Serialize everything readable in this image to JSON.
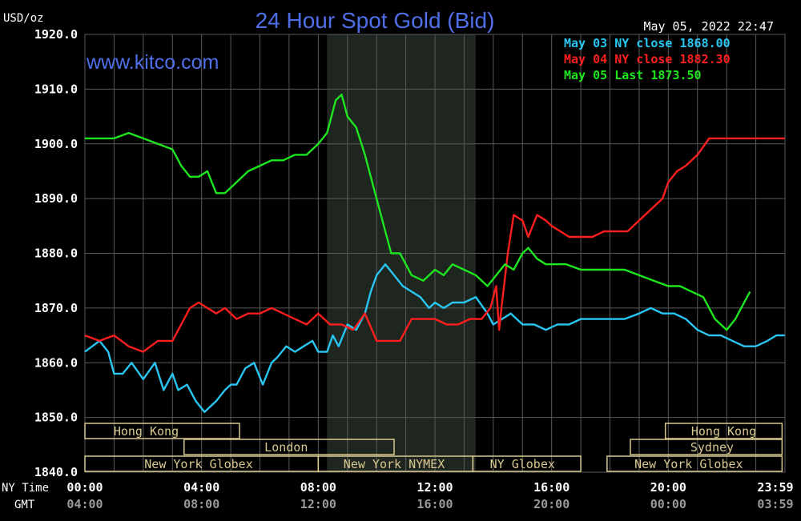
{
  "title": "24 Hour Spot Gold (Bid)",
  "units_label": "USD/oz",
  "watermark": "www.kitco.com",
  "timestamp": "May 05, 2022 22:47",
  "row_labels": {
    "ny": "NY Time",
    "gmt": "GMT"
  },
  "colors": {
    "background": "#000000",
    "title": "#4f6fe8",
    "grid": "#5a5a5a",
    "text": "#ffffff",
    "gmt_text": "#9a9a9a",
    "shade": "#1f2620",
    "session_box": "#d8c890",
    "may03": "#29c6f2",
    "may04": "#ff1e1e",
    "may05": "#1ee61e"
  },
  "chart_data": {
    "type": "line",
    "title": "24 Hour Spot Gold (Bid)",
    "ylabel": "USD/oz",
    "ylim": [
      1840,
      1920
    ],
    "xlim": [
      0,
      24
    ],
    "grid": true,
    "legend_position": "top-right",
    "y_ticks": [
      "1840.0",
      "1850.0",
      "1860.0",
      "1870.0",
      "1880.0",
      "1890.0",
      "1900.0",
      "1910.0",
      "1920.0"
    ],
    "x_ticks_ny": [
      "00:00",
      "04:00",
      "08:00",
      "12:00",
      "16:00",
      "20:00",
      "23:59"
    ],
    "x_ticks_gmt": [
      "04:00",
      "08:00",
      "12:00",
      "16:00",
      "20:00",
      "00:00",
      "03:59"
    ],
    "shaded_hours": [
      8.3,
      13.4
    ],
    "legend": [
      {
        "text": "May 03 NY close 1868.00",
        "color": "#29c6f2"
      },
      {
        "text": "May 04 NY close 1882.30",
        "color": "#ff1e1e"
      },
      {
        "text": "May 05 Last 1873.50",
        "color": "#1ee61e"
      }
    ],
    "sessions": [
      {
        "name": "Hong Kong",
        "start": 0,
        "end": 5.3,
        "row": 0,
        "label_at": 2.1
      },
      {
        "name": "Hong Kong",
        "start": 19.9,
        "end": 23.9,
        "row": 0,
        "label_at": 21.9
      },
      {
        "name": "London",
        "start": 3.4,
        "end": 10.6,
        "row": 1,
        "label_at": 6.9
      },
      {
        "name": "Sydney",
        "start": 18.7,
        "end": 23.9,
        "row": 1,
        "label_at": 21.5
      },
      {
        "name": "New York Globex",
        "start": 0,
        "end": 8.0,
        "row": 2,
        "label_at": 3.9
      },
      {
        "name": "New York NYMEX",
        "start": 8.0,
        "end": 13.3,
        "row": 2,
        "label_at": 10.6
      },
      {
        "name": "NY Globex",
        "start": 13.3,
        "end": 17.0,
        "row": 2,
        "label_at": 15.0
      },
      {
        "name": "New York Globex",
        "start": 17.9,
        "end": 23.9,
        "row": 2,
        "label_at": 20.7
      }
    ],
    "series": [
      {
        "name": "May 03",
        "color": "#29c6f2",
        "x": [
          0,
          0.5,
          0.8,
          1.0,
          1.3,
          1.6,
          2.0,
          2.4,
          2.7,
          3.0,
          3.2,
          3.5,
          3.8,
          4.1,
          4.5,
          4.8,
          5.0,
          5.2,
          5.5,
          5.8,
          6.1,
          6.4,
          6.6,
          6.9,
          7.2,
          7.5,
          7.8,
          8.0,
          8.3,
          8.5,
          8.7,
          9.0,
          9.3,
          9.6,
          9.8,
          10.0,
          10.3,
          10.6,
          10.9,
          11.2,
          11.5,
          11.8,
          12.0,
          12.3,
          12.6,
          13.0,
          13.4,
          13.8,
          14.0,
          14.3,
          14.6,
          15.0,
          15.4,
          15.8,
          16.2,
          16.6,
          17.0,
          17.5,
          18.0,
          18.5,
          19.0,
          19.4,
          19.8,
          20.2,
          20.6,
          21.0,
          21.4,
          21.8,
          22.2,
          22.6,
          23.0,
          23.4,
          23.7,
          23.99
        ],
        "values": [
          1862,
          1864,
          1862,
          1858,
          1858,
          1860,
          1857,
          1860,
          1855,
          1858,
          1855,
          1856,
          1853,
          1851,
          1853,
          1855,
          1856,
          1856,
          1859,
          1860,
          1856,
          1860,
          1861,
          1863,
          1862,
          1863,
          1864,
          1862,
          1862,
          1865,
          1863,
          1867,
          1866,
          1869,
          1873,
          1876,
          1878,
          1876,
          1874,
          1873,
          1872,
          1870,
          1871,
          1870,
          1871,
          1871,
          1872,
          1869,
          1867,
          1868,
          1869,
          1867,
          1867,
          1866,
          1867,
          1867,
          1868,
          1868,
          1868,
          1868,
          1869,
          1870,
          1869,
          1869,
          1868,
          1866,
          1865,
          1865,
          1864,
          1863,
          1863,
          1864,
          1865,
          1865
        ]
      },
      {
        "name": "May 04",
        "color": "#ff1e1e",
        "x": [
          0,
          0.5,
          1.0,
          1.5,
          2.0,
          2.5,
          3.0,
          3.3,
          3.6,
          3.9,
          4.2,
          4.5,
          4.8,
          5.2,
          5.6,
          6.0,
          6.4,
          6.8,
          7.2,
          7.6,
          8.0,
          8.4,
          8.8,
          9.2,
          9.6,
          10.0,
          10.4,
          10.8,
          11.2,
          11.6,
          12.0,
          12.4,
          12.8,
          13.2,
          13.6,
          13.9,
          14.1,
          14.2,
          14.3,
          14.5,
          14.7,
          15.0,
          15.2,
          15.5,
          15.8,
          16.0,
          16.3,
          16.6,
          17.0,
          17.4,
          17.8,
          18.2,
          18.6,
          19.0,
          19.4,
          19.8,
          20.0,
          20.3,
          20.6,
          21.0,
          21.4,
          21.8,
          22.2,
          22.6,
          23.0,
          23.4,
          23.7,
          23.99
        ],
        "values": [
          1865,
          1864,
          1865,
          1863,
          1862,
          1864,
          1864,
          1867,
          1870,
          1871,
          1870,
          1869,
          1870,
          1868,
          1869,
          1869,
          1870,
          1869,
          1868,
          1867,
          1869,
          1867,
          1867,
          1866,
          1869,
          1864,
          1864,
          1864,
          1868,
          1868,
          1868,
          1867,
          1867,
          1868,
          1868,
          1870,
          1874,
          1866,
          1871,
          1880,
          1887,
          1886,
          1883,
          1887,
          1886,
          1885,
          1884,
          1883,
          1883,
          1883,
          1884,
          1884,
          1884,
          1886,
          1888,
          1890,
          1893,
          1895,
          1896,
          1898,
          1901,
          1901,
          1901,
          1901,
          1901,
          1901,
          1901,
          1901
        ]
      },
      {
        "name": "May 05",
        "color": "#1ee61e",
        "x": [
          0,
          0.5,
          1.0,
          1.5,
          2.0,
          2.5,
          3.0,
          3.3,
          3.6,
          3.9,
          4.2,
          4.5,
          4.8,
          5.2,
          5.6,
          6.0,
          6.4,
          6.8,
          7.2,
          7.6,
          8.0,
          8.3,
          8.6,
          8.8,
          9.0,
          9.3,
          9.6,
          9.9,
          10.2,
          10.5,
          10.8,
          11.2,
          11.6,
          12.0,
          12.3,
          12.6,
          13.0,
          13.4,
          13.8,
          14.1,
          14.4,
          14.7,
          15.0,
          15.2,
          15.5,
          15.8,
          16.0,
          16.5,
          17.0,
          17.5,
          18.0,
          18.5,
          19.0,
          19.5,
          20.0,
          20.4,
          20.8,
          21.2,
          21.6,
          22.0,
          22.3,
          22.6,
          22.8
        ],
        "values": [
          1901,
          1901,
          1901,
          1902,
          1901,
          1900,
          1899,
          1896,
          1894,
          1894,
          1895,
          1891,
          1891,
          1893,
          1895,
          1896,
          1897,
          1897,
          1898,
          1898,
          1900,
          1902,
          1908,
          1909,
          1905,
          1903,
          1898,
          1892,
          1886,
          1880,
          1880,
          1876,
          1875,
          1877,
          1876,
          1878,
          1877,
          1876,
          1874,
          1876,
          1878,
          1877,
          1880,
          1881,
          1879,
          1878,
          1878,
          1878,
          1877,
          1877,
          1877,
          1877,
          1876,
          1875,
          1874,
          1874,
          1873,
          1872,
          1868,
          1866,
          1868,
          1871,
          1873
        ]
      }
    ]
  }
}
